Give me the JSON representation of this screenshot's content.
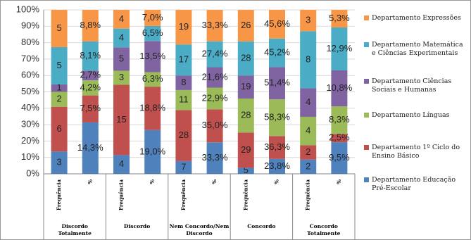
{
  "chart_data": {
    "type": "bar",
    "stacking": "percent",
    "groups": [
      "Discordo Totalmente",
      "Discordo",
      "Nem Concordo/Nem Discordo",
      "Concordo",
      "Concordo Totalmente"
    ],
    "categories": [
      "Frequência",
      "%",
      "Frequência",
      "%",
      "Frequência",
      "%",
      "Frequência",
      "%",
      "Frequência",
      "%"
    ],
    "ylim": [
      0,
      100
    ],
    "yticks": [
      {
        "value": 0,
        "label": "0%"
      },
      {
        "value": 10,
        "label": "10%"
      },
      {
        "value": 20,
        "label": "20%"
      },
      {
        "value": 30,
        "label": "30%"
      },
      {
        "value": 40,
        "label": "40%"
      },
      {
        "value": 50,
        "label": "50%"
      },
      {
        "value": 60,
        "label": "60%"
      },
      {
        "value": 70,
        "label": "70%"
      },
      {
        "value": 80,
        "label": "80%"
      },
      {
        "value": 90,
        "label": "90%"
      },
      {
        "value": 100,
        "label": "100%"
      }
    ],
    "series": [
      {
        "name": "Departamento Educação Pré-Escolar",
        "color": "#4f81bd",
        "values": [
          3,
          14.3,
          4,
          19.0,
          7,
          33.3,
          5,
          23.8,
          2,
          9.5
        ],
        "value_labels": [
          "3",
          "14,3%",
          "4",
          "19,0%",
          "7",
          "33,3%",
          "5",
          "23,8%",
          "2",
          "9,5%"
        ]
      },
      {
        "name": "Departamento 1º Ciclo do Ensino Básico",
        "color": "#c0504d",
        "values": [
          6,
          7.5,
          15,
          18.8,
          28,
          35.0,
          29,
          36.3,
          2,
          2.5
        ],
        "value_labels": [
          "6",
          "7,5%",
          "15",
          "18,8%",
          "28",
          "35,0%",
          "29",
          "36,3%",
          "2",
          "2,5%"
        ]
      },
      {
        "name": "Departamento Línguas",
        "color": "#9bbb59",
        "values": [
          2,
          4.2,
          3,
          6.3,
          11,
          22.9,
          28,
          58.3,
          4,
          8.3
        ],
        "value_labels": [
          "2",
          "4,2%",
          "3",
          "6,3%",
          "11",
          "22,9%",
          "28",
          "58,3%",
          "4",
          "8,3%"
        ]
      },
      {
        "name": "Departamento Ciências Sociais e Humanas",
        "color": "#8064a2",
        "values": [
          1,
          2.7,
          5,
          13.5,
          8,
          21.6,
          19,
          51.4,
          4,
          10.8
        ],
        "value_labels": [
          "1",
          "2,7%",
          "5",
          "13,5%",
          "8",
          "21,6%",
          "19",
          "51,4%",
          "4",
          "10,8%"
        ]
      },
      {
        "name": "Departamento Matemática e Ciências Experimentais",
        "color": "#4bacc6",
        "values": [
          5,
          8.1,
          4,
          6.5,
          17,
          27.4,
          28,
          45.2,
          8,
          12.9
        ],
        "value_labels": [
          "5",
          "8,1%",
          "4",
          "6,5%",
          "17",
          "27,4%",
          "28",
          "45,2%",
          "8",
          "12,9%"
        ]
      },
      {
        "name": "Departamento Expressões",
        "color": "#f79646",
        "values": [
          5,
          8.8,
          4,
          7.0,
          19,
          33.3,
          26,
          45.6,
          3,
          5.3
        ],
        "value_labels": [
          "5",
          "8,8%",
          "4",
          "7,0%",
          "19",
          "33,3%",
          "26",
          "45,6%",
          "3",
          "5,3%"
        ]
      }
    ]
  }
}
